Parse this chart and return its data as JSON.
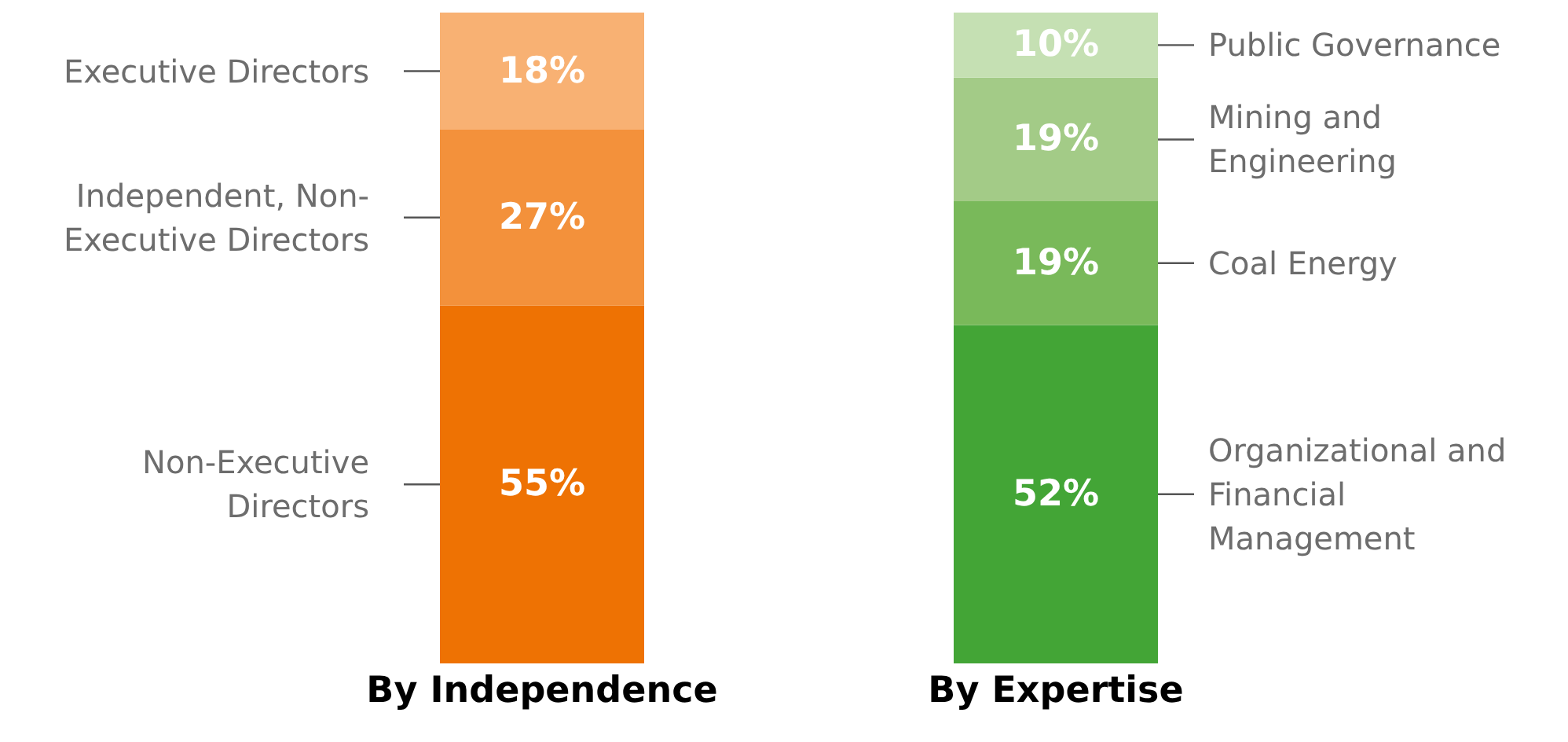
{
  "chart_data": [
    {
      "type": "bar",
      "stacked": true,
      "categories": [
        "By Independence"
      ],
      "ylim": [
        0,
        100
      ],
      "tick_labels": "x",
      "series": [
        {
          "name": "Non-Executive Directors",
          "color": "#ee7203",
          "values": [
            55
          ],
          "value_labels": [
            "55%"
          ]
        },
        {
          "name": "Independent, Non-Executive Directors",
          "color": "#f3913b",
          "values": [
            27
          ],
          "value_labels": [
            "27%"
          ]
        },
        {
          "name": "Executive Directors",
          "color": "#f8b173",
          "values": [
            18
          ],
          "value_labels": [
            "18%"
          ]
        }
      ]
    },
    {
      "type": "bar",
      "stacked": true,
      "categories": [
        "By Expertise"
      ],
      "ylim": [
        0,
        100
      ],
      "tick_labels": "x",
      "series": [
        {
          "name": "Organizational and Financial Management",
          "color": "#43a536",
          "values": [
            52
          ],
          "value_labels": [
            "52%"
          ]
        },
        {
          "name": "Coal Energy",
          "color": "#79b95a",
          "values": [
            19
          ],
          "value_labels": [
            "19%"
          ]
        },
        {
          "name": "Mining and Engineering",
          "color": "#a3cb87",
          "values": [
            19
          ],
          "value_labels": [
            "19%"
          ]
        },
        {
          "name": "Public Governance",
          "color": "#c5e0b3",
          "values": [
            10
          ],
          "value_labels": [
            "10%"
          ]
        }
      ]
    }
  ]
}
